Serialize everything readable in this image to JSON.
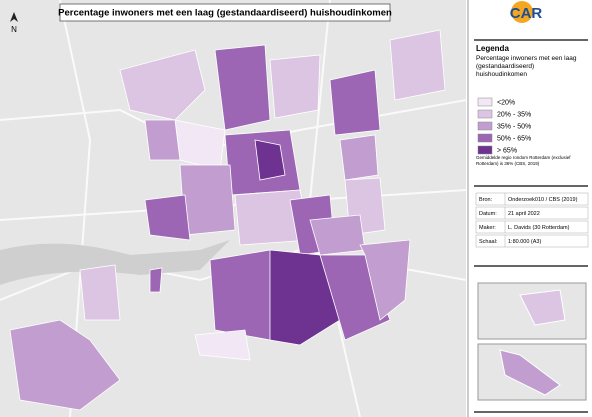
{
  "map": {
    "title": "Percentage inwoners met een laag (gestandaardiseerd) huishoudinkomen",
    "north": "N",
    "logo": "CAR",
    "legend": {
      "heading": "Legenda",
      "subtitle": "Percentage inwoners met een laag (gestandaardiseerd) huishoudinkomen",
      "classes": [
        {
          "label": "<20%",
          "color": "#f2e7f4"
        },
        {
          "label": "20% - 35%",
          "color": "#dcc5e3"
        },
        {
          "label": "35% - 50%",
          "color": "#c29dd0"
        },
        {
          "label": "50% - 65%",
          "color": "#9d66b4"
        },
        {
          "label": "> 65%",
          "color": "#6e3290"
        }
      ],
      "note": "Gemiddelde regio rondom Rotterdam (exclusief Rotterdam) is 36% (CBS, 2019)"
    },
    "info": [
      [
        "Bron:",
        "Onderzoek010 / CBS (2019)"
      ],
      [
        "Datum:",
        "21 april 2022"
      ],
      [
        "Maker:",
        "L. Davids (30 Rotterdam)"
      ],
      [
        "Schaal:",
        "1:80.000 (A3)"
      ]
    ]
  }
}
